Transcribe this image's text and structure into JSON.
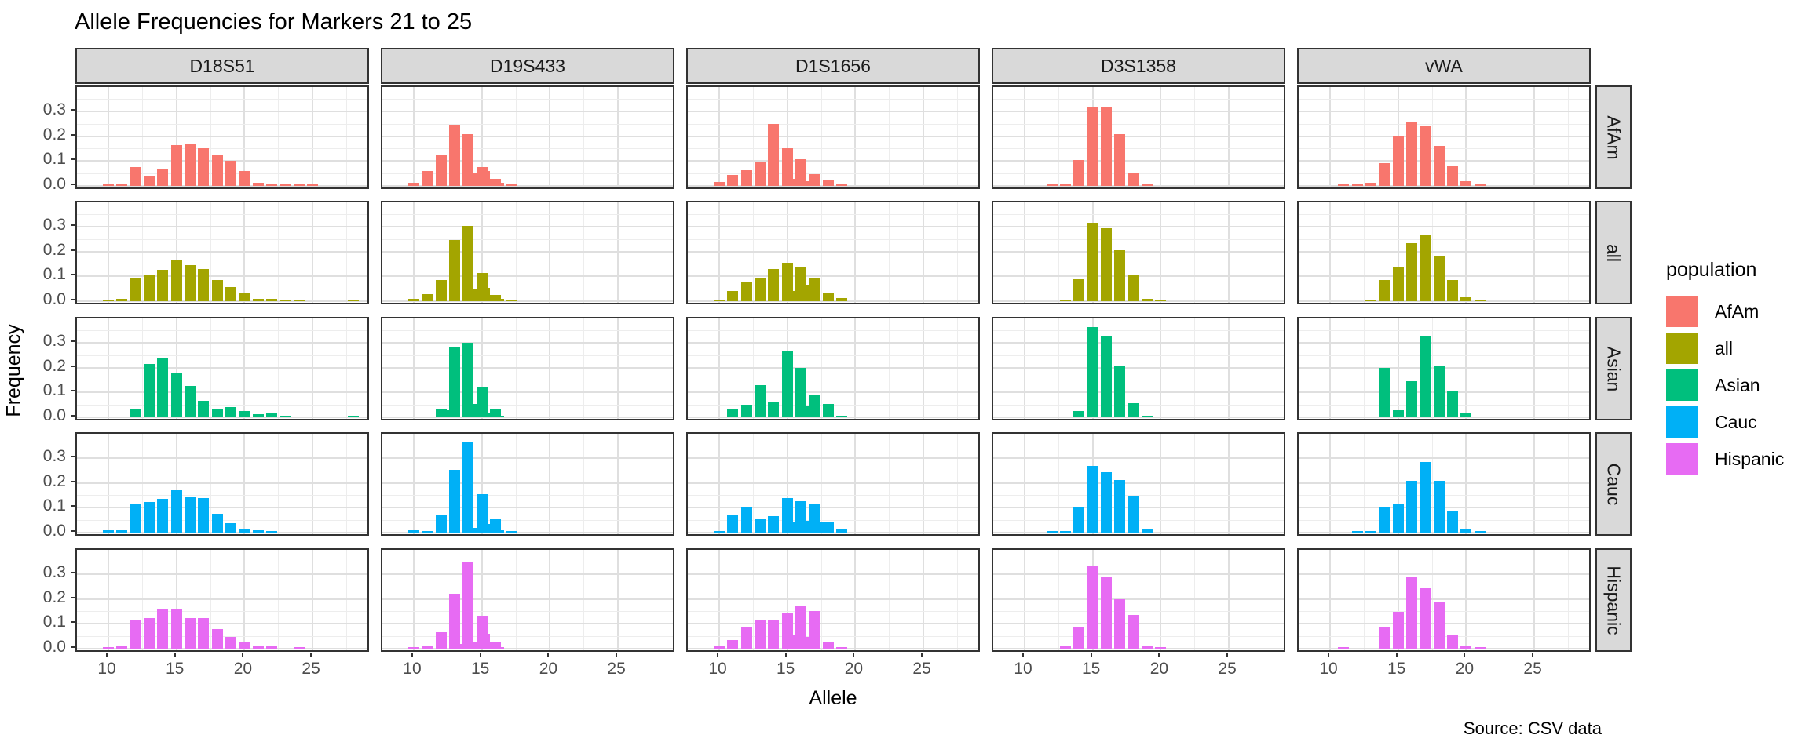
{
  "title": "Allele Frequencies for Markers 21 to 25",
  "source_note": "Source: CSV data",
  "axes": {
    "x_label": "Allele",
    "y_label": "Frequency",
    "x_tick_labels": [
      "10",
      "15",
      "20",
      "25"
    ],
    "y_tick_labels": [
      "0.3",
      "0.2",
      "0.1",
      "0.0"
    ]
  },
  "legend": {
    "title": "population",
    "items": [
      {
        "label": "AfAm",
        "color": "#F8766D"
      },
      {
        "label": "all",
        "color": "#A3A500"
      },
      {
        "label": "Asian",
        "color": "#00BF7D"
      },
      {
        "label": "Cauc",
        "color": "#00B0F6"
      },
      {
        "label": "Hispanic",
        "color": "#E76BF3"
      }
    ]
  },
  "styles": {
    "strip_bg": "#D9D9D9",
    "panel_border": "#333333",
    "tick_text": "#4D4D4D",
    "grid_major": "#DFDFDF",
    "grid_minor": "#EDEDED"
  },
  "chart_data": {
    "type": "bar",
    "title": "Allele Frequencies for Markers 21 to 25",
    "xlabel": "Allele",
    "ylabel": "Frequency",
    "facet_columns": [
      "D18S51",
      "D19S433",
      "D1S1656",
      "D3S1358",
      "vWA"
    ],
    "facet_rows": [
      "AfAm",
      "all",
      "Asian",
      "Cauc",
      "Hispanic"
    ],
    "x_ticks": [
      10,
      15,
      20,
      25
    ],
    "y_ticks": [
      0.0,
      0.1,
      0.2,
      0.3
    ],
    "x_range": [
      7.7,
      29.3
    ],
    "y_range": [
      0,
      0.37
    ],
    "grid": true,
    "legend_position": "right",
    "series_colors": {
      "AfAm": "#F8766D",
      "all": "#A3A500",
      "Asian": "#00BF7D",
      "Cauc": "#00B0F6",
      "Hispanic": "#E76BF3"
    },
    "panels": [
      {
        "marker": "D18S51",
        "population": "AfAm",
        "alleles": [
          10,
          11,
          12,
          13,
          14,
          15,
          16,
          17,
          18,
          19,
          20,
          21,
          22,
          23,
          24,
          25
        ],
        "frequencies": [
          0.006,
          0.005,
          0.075,
          0.042,
          0.068,
          0.165,
          0.172,
          0.152,
          0.122,
          0.1,
          0.06,
          0.012,
          0.006,
          0.008,
          0.004,
          0.003
        ]
      },
      {
        "marker": "D19S433",
        "population": "AfAm",
        "alleles": [
          10,
          11,
          12,
          13,
          14,
          14.2,
          15,
          15.2,
          16,
          16.2,
          17.2
        ],
        "frequencies": [
          0.012,
          0.06,
          0.122,
          0.247,
          0.21,
          0.055,
          0.075,
          0.06,
          0.03,
          0.012,
          0.006
        ]
      },
      {
        "marker": "D1S1656",
        "population": "AfAm",
        "alleles": [
          10,
          11,
          12,
          13,
          14,
          15,
          15.3,
          16,
          16.3,
          17,
          18,
          19
        ],
        "frequencies": [
          0.015,
          0.045,
          0.063,
          0.097,
          0.25,
          0.153,
          0.028,
          0.107,
          0.02,
          0.047,
          0.025,
          0.01
        ]
      },
      {
        "marker": "D3S1358",
        "population": "AfAm",
        "alleles": [
          12,
          13,
          14,
          15,
          16,
          17,
          18,
          19
        ],
        "frequencies": [
          0.005,
          0.005,
          0.105,
          0.315,
          0.32,
          0.21,
          0.055,
          0.006
        ]
      },
      {
        "marker": "vWA",
        "population": "AfAm",
        "alleles": [
          11,
          12,
          13,
          14,
          15,
          16,
          17,
          18,
          19,
          20,
          21
        ],
        "frequencies": [
          0.004,
          0.005,
          0.012,
          0.092,
          0.2,
          0.255,
          0.24,
          0.16,
          0.08,
          0.02,
          0.004
        ]
      },
      {
        "marker": "D18S51",
        "population": "all",
        "alleles": [
          10,
          11,
          12,
          13,
          14,
          15,
          16,
          17,
          18,
          19,
          20,
          21,
          22,
          23,
          24,
          28
        ],
        "frequencies": [
          0.003,
          0.008,
          0.092,
          0.103,
          0.128,
          0.167,
          0.147,
          0.131,
          0.086,
          0.058,
          0.034,
          0.01,
          0.008,
          0.004,
          0.002,
          0.002
        ]
      },
      {
        "marker": "D19S433",
        "population": "all",
        "alleles": [
          10,
          11,
          12,
          13,
          14,
          14.2,
          15,
          15.2,
          16,
          16.2,
          17.2
        ],
        "frequencies": [
          0.008,
          0.027,
          0.085,
          0.247,
          0.305,
          0.05,
          0.115,
          0.055,
          0.025,
          0.008,
          0.003
        ]
      },
      {
        "marker": "D1S1656",
        "population": "all",
        "alleles": [
          10,
          11,
          12,
          13,
          14,
          15,
          15.3,
          16,
          16.3,
          17,
          18,
          19
        ],
        "frequencies": [
          0.005,
          0.042,
          0.075,
          0.095,
          0.13,
          0.155,
          0.04,
          0.135,
          0.065,
          0.095,
          0.032,
          0.012
        ]
      },
      {
        "marker": "D3S1358",
        "population": "all",
        "alleles": [
          13,
          14,
          15,
          16,
          17,
          18,
          19,
          20
        ],
        "frequencies": [
          0.005,
          0.088,
          0.318,
          0.295,
          0.207,
          0.108,
          0.01,
          0.002
        ]
      },
      {
        "marker": "vWA",
        "population": "all",
        "alleles": [
          13,
          14,
          15,
          16,
          17,
          18,
          19,
          20,
          21
        ],
        "frequencies": [
          0.005,
          0.085,
          0.14,
          0.235,
          0.268,
          0.185,
          0.085,
          0.015,
          0.003
        ]
      },
      {
        "marker": "D18S51",
        "population": "Asian",
        "alleles": [
          12,
          13,
          14,
          15,
          16,
          17,
          18,
          19,
          20,
          21,
          22,
          23,
          28
        ],
        "frequencies": [
          0.034,
          0.216,
          0.237,
          0.178,
          0.128,
          0.067,
          0.032,
          0.04,
          0.025,
          0.012,
          0.016,
          0.005,
          0.005
        ]
      },
      {
        "marker": "D19S433",
        "population": "Asian",
        "alleles": [
          12,
          12.2,
          13,
          14,
          14.2,
          15,
          15.2,
          16,
          16.2
        ],
        "frequencies": [
          0.035,
          0.03,
          0.283,
          0.302,
          0.055,
          0.123,
          0.02,
          0.031,
          0.005
        ]
      },
      {
        "marker": "D1S1656",
        "population": "Asian",
        "alleles": [
          11,
          12,
          13,
          14,
          15,
          16,
          16.3,
          17,
          18,
          19
        ],
        "frequencies": [
          0.032,
          0.052,
          0.13,
          0.062,
          0.27,
          0.2,
          0.048,
          0.088,
          0.055,
          0.005
        ]
      },
      {
        "marker": "D3S1358",
        "population": "Asian",
        "alleles": [
          14,
          15,
          16,
          17,
          18,
          19
        ],
        "frequencies": [
          0.025,
          0.365,
          0.33,
          0.205,
          0.058,
          0.007
        ]
      },
      {
        "marker": "vWA",
        "population": "Asian",
        "alleles": [
          14,
          15,
          16,
          17,
          18,
          19,
          20
        ],
        "frequencies": [
          0.2,
          0.028,
          0.145,
          0.325,
          0.21,
          0.105,
          0.02
        ]
      },
      {
        "marker": "D18S51",
        "population": "Cauc",
        "alleles": [
          10,
          11,
          12,
          13,
          14,
          15,
          16,
          17,
          18,
          19,
          20,
          21,
          22
        ],
        "frequencies": [
          0.009,
          0.011,
          0.114,
          0.122,
          0.136,
          0.17,
          0.145,
          0.138,
          0.077,
          0.038,
          0.017,
          0.008,
          0.004
        ]
      },
      {
        "marker": "D19S433",
        "population": "Cauc",
        "alleles": [
          10,
          11,
          12,
          13,
          14,
          14.2,
          15,
          15.2,
          16,
          16.2,
          17.2
        ],
        "frequencies": [
          0.008,
          0.004,
          0.072,
          0.253,
          0.368,
          0.02,
          0.155,
          0.035,
          0.055,
          0.008,
          0.004
        ]
      },
      {
        "marker": "D1S1656",
        "population": "Cauc",
        "alleles": [
          10,
          11,
          12,
          13,
          14,
          15,
          15.3,
          16,
          16.3,
          17,
          17.3,
          18,
          19
        ],
        "frequencies": [
          0.003,
          0.072,
          0.105,
          0.055,
          0.065,
          0.14,
          0.04,
          0.125,
          0.048,
          0.115,
          0.045,
          0.04,
          0.012
        ]
      },
      {
        "marker": "D3S1358",
        "population": "Cauc",
        "alleles": [
          12,
          13,
          14,
          15,
          16,
          17,
          18,
          19
        ],
        "frequencies": [
          0.002,
          0.003,
          0.105,
          0.27,
          0.245,
          0.212,
          0.148,
          0.012
        ]
      },
      {
        "marker": "vWA",
        "population": "Cauc",
        "alleles": [
          12,
          13,
          14,
          15,
          16,
          17,
          18,
          19,
          20,
          21
        ],
        "frequencies": [
          0.002,
          0.004,
          0.103,
          0.113,
          0.21,
          0.285,
          0.21,
          0.085,
          0.012,
          0.002
        ]
      },
      {
        "marker": "D18S51",
        "population": "Hispanic",
        "alleles": [
          10,
          11,
          12,
          13,
          14,
          15,
          16,
          17,
          18,
          19,
          20,
          21,
          22,
          24
        ],
        "frequencies": [
          0.003,
          0.013,
          0.114,
          0.122,
          0.16,
          0.158,
          0.122,
          0.122,
          0.078,
          0.047,
          0.028,
          0.008,
          0.012,
          0.002
        ]
      },
      {
        "marker": "D19S433",
        "population": "Hispanic",
        "alleles": [
          10,
          11,
          12,
          13,
          13.2,
          14,
          14.2,
          15,
          15.2,
          16,
          16.2
        ],
        "frequencies": [
          0.004,
          0.013,
          0.065,
          0.223,
          0.02,
          0.352,
          0.03,
          0.133,
          0.06,
          0.027,
          0.005
        ]
      },
      {
        "marker": "D1S1656",
        "population": "Hispanic",
        "alleles": [
          10,
          11,
          12,
          13,
          14,
          15,
          15.3,
          16,
          16.3,
          17,
          18,
          19
        ],
        "frequencies": [
          0.01,
          0.035,
          0.09,
          0.118,
          0.117,
          0.142,
          0.055,
          0.175,
          0.048,
          0.152,
          0.03,
          0.006
        ]
      },
      {
        "marker": "D3S1358",
        "population": "Hispanic",
        "alleles": [
          13,
          14,
          15,
          16,
          17,
          18,
          19,
          20
        ],
        "frequencies": [
          0.012,
          0.09,
          0.335,
          0.29,
          0.2,
          0.135,
          0.012,
          0.004
        ]
      },
      {
        "marker": "vWA",
        "population": "Hispanic",
        "alleles": [
          11,
          14,
          15,
          16,
          17,
          18,
          19,
          20,
          21
        ],
        "frequencies": [
          0.004,
          0.085,
          0.15,
          0.29,
          0.245,
          0.19,
          0.055,
          0.012,
          0.004
        ]
      }
    ]
  }
}
